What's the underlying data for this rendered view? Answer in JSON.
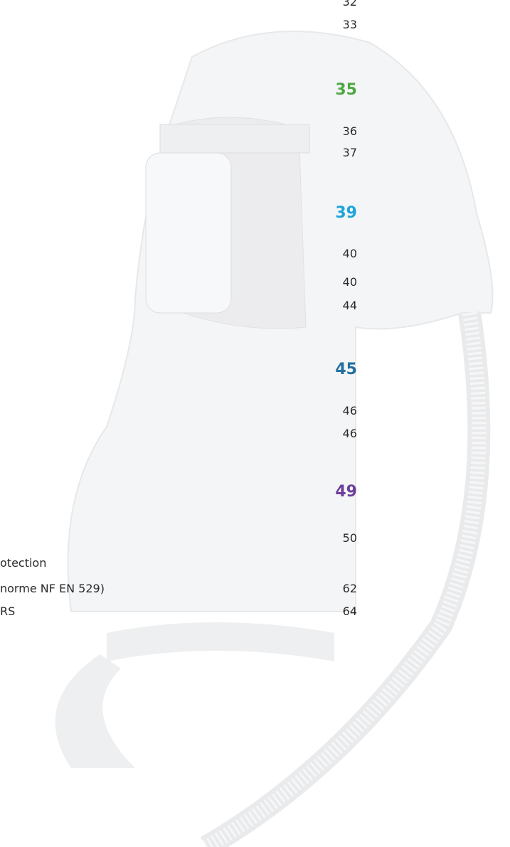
{
  "entries": [
    {
      "page": "32"
    },
    {
      "page": "33"
    },
    {
      "page": "35",
      "heading": true,
      "color": "#4ea843"
    },
    {
      "page": "36"
    },
    {
      "page": "37"
    },
    {
      "page": "39",
      "heading": true,
      "color": "#1ea4d9"
    },
    {
      "page": "40"
    },
    {
      "page": "40"
    },
    {
      "page": "44"
    },
    {
      "page": "45",
      "heading": true,
      "color": "#22709f"
    },
    {
      "page": "46"
    },
    {
      "page": "46"
    },
    {
      "page": "49",
      "heading": true,
      "color": "#6c3f99"
    },
    {
      "page": "50"
    },
    {
      "label": "otection"
    },
    {
      "label": "norme NF EN 529)",
      "page": "62"
    },
    {
      "label": "RS",
      "page": "64"
    }
  ]
}
